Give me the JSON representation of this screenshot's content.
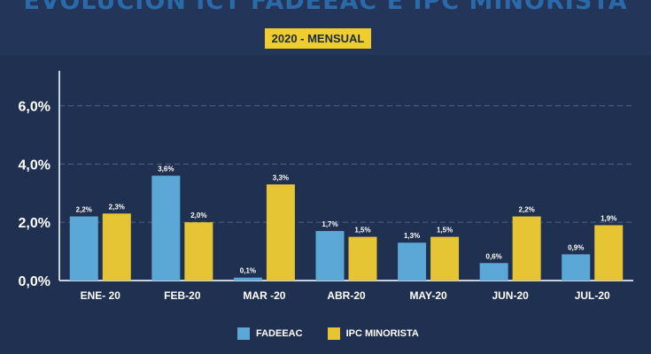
{
  "header": {
    "title": "EVOLUCION ICT FADEEAC E IPC MINORISTA",
    "subtitle": "2020 - MENSUAL"
  },
  "colors": {
    "background": "#1f3050",
    "series_fadeeac": "#5ba8d6",
    "series_ipc": "#e6c535",
    "badge": "#f0cd2e"
  },
  "chart_data": {
    "type": "bar",
    "title": "EVOLUCION ICT FADEEAC E IPC MINORISTA",
    "subtitle": "2020 - MENSUAL",
    "categories": [
      "ENE- 20",
      "FEB-20",
      "MAR -20",
      "ABR-20",
      "MAY-20",
      "JUN-20",
      "JUL-20"
    ],
    "series": [
      {
        "name": "FADEEAC",
        "values": [
          2.2,
          3.6,
          0.1,
          1.7,
          1.3,
          0.6,
          0.9
        ],
        "labels": [
          "2,2%",
          "3,6%",
          "0,1%",
          "1,7%",
          "1,3%",
          "0,6%",
          "0,9%"
        ]
      },
      {
        "name": "IPC MINORISTA",
        "values": [
          2.3,
          2.0,
          3.3,
          1.5,
          1.5,
          2.2,
          1.9
        ],
        "labels": [
          "2,3%",
          "2,0%",
          "3,3%",
          "1,5%",
          "1,5%",
          "2,2%",
          "1,9%"
        ]
      }
    ],
    "yticks": [
      0,
      2,
      4,
      6
    ],
    "ytick_labels": [
      "0,0%",
      "2,0%",
      "4,0%",
      "6,0%"
    ],
    "ylim": [
      0,
      7.2
    ],
    "grid": true,
    "legend_position": "bottom-center"
  }
}
